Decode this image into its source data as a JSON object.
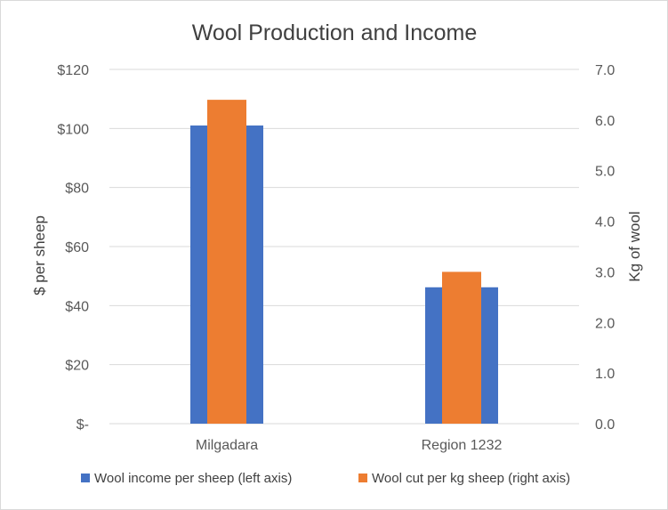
{
  "chart_data": {
    "type": "bar",
    "title": "Wool Production and Income",
    "categories": [
      "Milgadara",
      "Region 1232"
    ],
    "series": [
      {
        "name": "Wool income per sheep (left axis)",
        "axis": "left",
        "color": "#4472C4",
        "values": [
          101,
          46.2
        ]
      },
      {
        "name": "Wool cut per kg sheep (right axis)",
        "axis": "right",
        "color": "#ED7D31",
        "values": [
          6.4,
          3.0
        ]
      }
    ],
    "y_left": {
      "label": "$ per sheep",
      "min": 0,
      "max": 120,
      "ticks": [
        0,
        20,
        40,
        60,
        80,
        100,
        120
      ],
      "tick_labels": [
        "$-",
        "$20",
        "$40",
        "$60",
        "$80",
        "$100",
        "$120"
      ]
    },
    "y_right": {
      "label": "Kg of wool",
      "min": 0,
      "max": 7,
      "ticks": [
        0,
        1,
        2,
        3,
        4,
        5,
        6,
        7
      ],
      "tick_labels": [
        "0.0",
        "1.0",
        "2.0",
        "3.0",
        "4.0",
        "5.0",
        "6.0",
        "7.0"
      ]
    },
    "grid": true,
    "legend_position": "bottom"
  }
}
